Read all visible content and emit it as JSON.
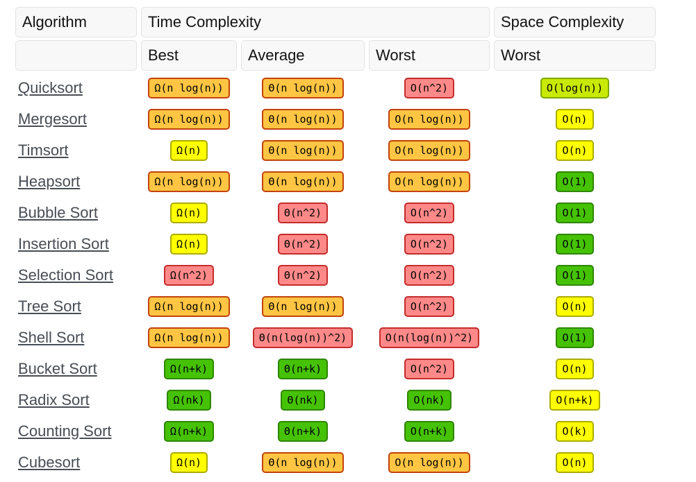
{
  "table": {
    "header": {
      "algorithm": "Algorithm",
      "time_complexity": "Time Complexity",
      "space_complexity": "Space Complexity",
      "sub_best": "Best",
      "sub_average": "Average",
      "sub_worst": "Worst",
      "sub_space_worst": "Worst"
    },
    "rows": [
      {
        "algorithm": "Quicksort",
        "best": {
          "text": "Ω(n log(n))",
          "rating": "bad"
        },
        "average": {
          "text": "Θ(n log(n))",
          "rating": "bad"
        },
        "worst": {
          "text": "O(n^2)",
          "rating": "horrible"
        },
        "space_worst": {
          "text": "O(log(n))",
          "rating": "good"
        }
      },
      {
        "algorithm": "Mergesort",
        "best": {
          "text": "Ω(n log(n))",
          "rating": "bad"
        },
        "average": {
          "text": "Θ(n log(n))",
          "rating": "bad"
        },
        "worst": {
          "text": "O(n log(n))",
          "rating": "bad"
        },
        "space_worst": {
          "text": "O(n)",
          "rating": "fair"
        }
      },
      {
        "algorithm": "Timsort",
        "best": {
          "text": "Ω(n)",
          "rating": "fair"
        },
        "average": {
          "text": "Θ(n log(n))",
          "rating": "bad"
        },
        "worst": {
          "text": "O(n log(n))",
          "rating": "bad"
        },
        "space_worst": {
          "text": "O(n)",
          "rating": "fair"
        }
      },
      {
        "algorithm": "Heapsort",
        "best": {
          "text": "Ω(n log(n))",
          "rating": "bad"
        },
        "average": {
          "text": "Θ(n log(n))",
          "rating": "bad"
        },
        "worst": {
          "text": "O(n log(n))",
          "rating": "bad"
        },
        "space_worst": {
          "text": "O(1)",
          "rating": "excellent"
        }
      },
      {
        "algorithm": "Bubble Sort",
        "best": {
          "text": "Ω(n)",
          "rating": "fair"
        },
        "average": {
          "text": "Θ(n^2)",
          "rating": "horrible"
        },
        "worst": {
          "text": "O(n^2)",
          "rating": "horrible"
        },
        "space_worst": {
          "text": "O(1)",
          "rating": "excellent"
        }
      },
      {
        "algorithm": "Insertion Sort",
        "best": {
          "text": "Ω(n)",
          "rating": "fair"
        },
        "average": {
          "text": "Θ(n^2)",
          "rating": "horrible"
        },
        "worst": {
          "text": "O(n^2)",
          "rating": "horrible"
        },
        "space_worst": {
          "text": "O(1)",
          "rating": "excellent"
        }
      },
      {
        "algorithm": "Selection Sort",
        "best": {
          "text": "Ω(n^2)",
          "rating": "horrible"
        },
        "average": {
          "text": "Θ(n^2)",
          "rating": "horrible"
        },
        "worst": {
          "text": "O(n^2)",
          "rating": "horrible"
        },
        "space_worst": {
          "text": "O(1)",
          "rating": "excellent"
        }
      },
      {
        "algorithm": "Tree Sort",
        "best": {
          "text": "Ω(n log(n))",
          "rating": "bad"
        },
        "average": {
          "text": "Θ(n log(n))",
          "rating": "bad"
        },
        "worst": {
          "text": "O(n^2)",
          "rating": "horrible"
        },
        "space_worst": {
          "text": "O(n)",
          "rating": "fair"
        }
      },
      {
        "algorithm": "Shell Sort",
        "best": {
          "text": "Ω(n log(n))",
          "rating": "bad"
        },
        "average": {
          "text": "Θ(n(log(n))^2)",
          "rating": "horrible"
        },
        "worst": {
          "text": "O(n(log(n))^2)",
          "rating": "horrible"
        },
        "space_worst": {
          "text": "O(1)",
          "rating": "excellent"
        }
      },
      {
        "algorithm": "Bucket Sort",
        "best": {
          "text": "Ω(n+k)",
          "rating": "excellent"
        },
        "average": {
          "text": "Θ(n+k)",
          "rating": "excellent"
        },
        "worst": {
          "text": "O(n^2)",
          "rating": "horrible"
        },
        "space_worst": {
          "text": "O(n)",
          "rating": "fair"
        }
      },
      {
        "algorithm": "Radix Sort",
        "best": {
          "text": "Ω(nk)",
          "rating": "excellent"
        },
        "average": {
          "text": "Θ(nk)",
          "rating": "excellent"
        },
        "worst": {
          "text": "O(nk)",
          "rating": "excellent"
        },
        "space_worst": {
          "text": "O(n+k)",
          "rating": "fair"
        }
      },
      {
        "algorithm": "Counting Sort",
        "best": {
          "text": "Ω(n+k)",
          "rating": "excellent"
        },
        "average": {
          "text": "Θ(n+k)",
          "rating": "excellent"
        },
        "worst": {
          "text": "O(n+k)",
          "rating": "excellent"
        },
        "space_worst": {
          "text": "O(k)",
          "rating": "fair"
        }
      },
      {
        "algorithm": "Cubesort",
        "best": {
          "text": "Ω(n)",
          "rating": "fair"
        },
        "average": {
          "text": "Θ(n log(n))",
          "rating": "bad"
        },
        "worst": {
          "text": "O(n log(n))",
          "rating": "bad"
        },
        "space_worst": {
          "text": "O(n)",
          "rating": "fair"
        }
      }
    ]
  },
  "rating_colors": {
    "excellent": {
      "bg": "#46C204",
      "border": "#2E8500"
    },
    "good": {
      "bg": "#C8EA00",
      "border": "#7CA800"
    },
    "fair": {
      "bg": "#FFFF00",
      "border": "#ABAB00"
    },
    "bad": {
      "bg": "#FFC543",
      "border": "#C2420C"
    },
    "horrible": {
      "bg": "#FF8989",
      "border": "#C42B2B"
    }
  },
  "link_color": "#474D54"
}
